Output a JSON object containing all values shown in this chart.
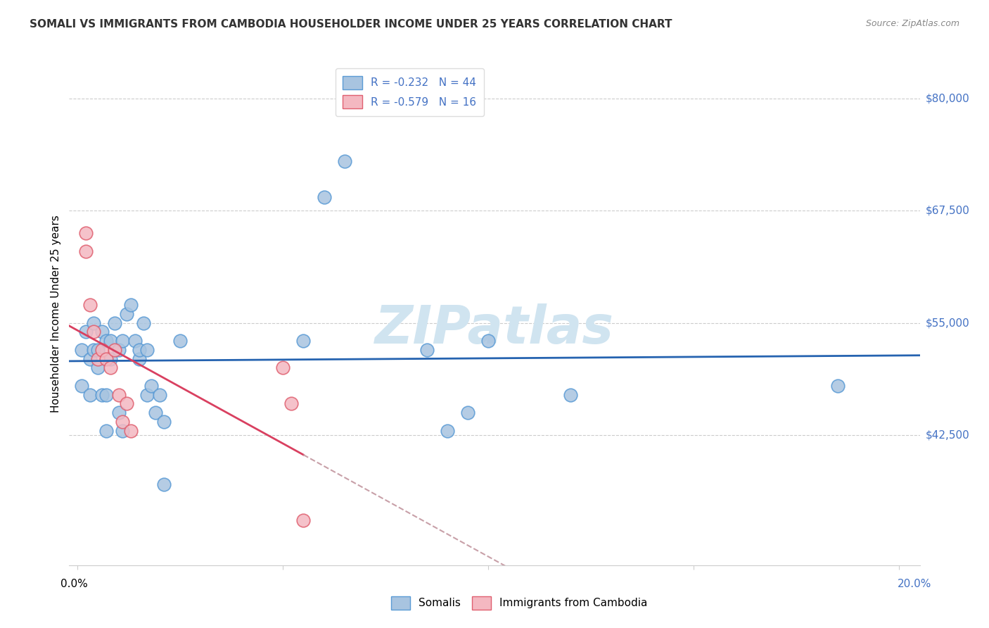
{
  "title": "SOMALI VS IMMIGRANTS FROM CAMBODIA HOUSEHOLDER INCOME UNDER 25 YEARS CORRELATION CHART",
  "source": "Source: ZipAtlas.com",
  "ylabel": "Householder Income Under 25 years",
  "ytick_labels": [
    "$42,500",
    "$55,000",
    "$67,500",
    "$80,000"
  ],
  "ytick_values": [
    42500,
    55000,
    67500,
    80000
  ],
  "ymin": 28000,
  "ymax": 84000,
  "xmin": -0.002,
  "xmax": 0.205,
  "somali_color": "#a8c4e0",
  "somali_edge_color": "#5b9bd5",
  "cambodia_color": "#f4b8c1",
  "cambodia_edge_color": "#e06070",
  "trend_somali_color": "#2563b0",
  "trend_cambodia_color": "#d94060",
  "trend_cambodia_ext_color": "#c8a0a8",
  "watermark_color": "#d0e4f0",
  "legend_R_somali": "-0.232",
  "legend_N_somali": "44",
  "legend_R_cambodia": "-0.579",
  "legend_N_cambodia": "16",
  "somali_x": [
    0.001,
    0.001,
    0.002,
    0.003,
    0.003,
    0.004,
    0.004,
    0.005,
    0.005,
    0.006,
    0.006,
    0.007,
    0.007,
    0.007,
    0.008,
    0.008,
    0.009,
    0.01,
    0.01,
    0.011,
    0.011,
    0.012,
    0.013,
    0.014,
    0.015,
    0.015,
    0.016,
    0.017,
    0.017,
    0.018,
    0.019,
    0.02,
    0.021,
    0.021,
    0.025,
    0.055,
    0.06,
    0.065,
    0.085,
    0.09,
    0.095,
    0.1,
    0.12,
    0.185
  ],
  "somali_y": [
    52000,
    48000,
    54000,
    47000,
    51000,
    52000,
    55000,
    50000,
    52000,
    54000,
    47000,
    53000,
    47000,
    43000,
    51000,
    53000,
    55000,
    52000,
    45000,
    53000,
    43000,
    56000,
    57000,
    53000,
    51000,
    52000,
    55000,
    52000,
    47000,
    48000,
    45000,
    47000,
    44000,
    37000,
    53000,
    53000,
    69000,
    73000,
    52000,
    43000,
    45000,
    53000,
    47000,
    48000
  ],
  "cambodia_x": [
    0.002,
    0.002,
    0.003,
    0.004,
    0.005,
    0.006,
    0.007,
    0.008,
    0.009,
    0.01,
    0.011,
    0.012,
    0.013,
    0.05,
    0.052,
    0.055
  ],
  "cambodia_y": [
    65000,
    63000,
    57000,
    54000,
    51000,
    52000,
    51000,
    50000,
    52000,
    47000,
    44000,
    46000,
    43000,
    50000,
    46000,
    33000
  ]
}
